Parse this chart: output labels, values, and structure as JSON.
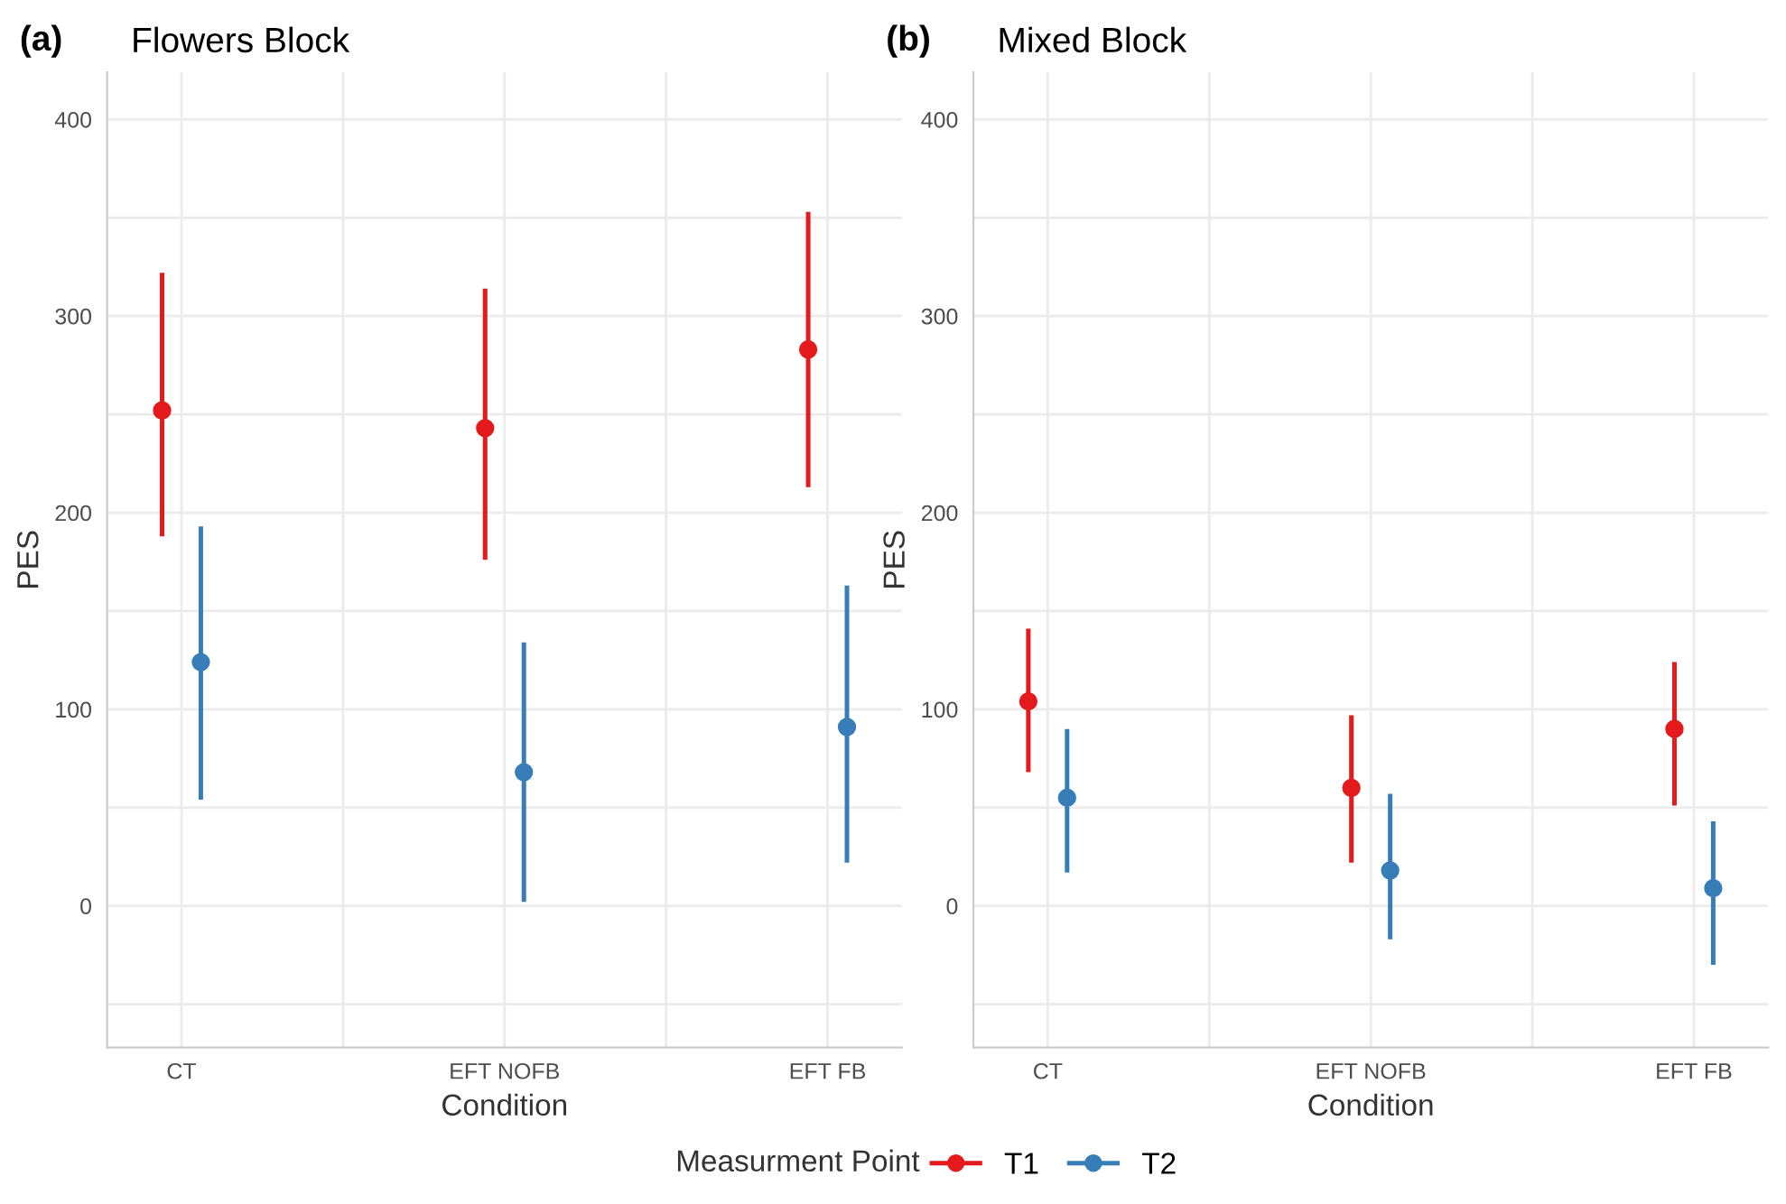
{
  "chart_data": [
    {
      "type": "scatter",
      "title": "Flowers Block",
      "annotations": [
        "(a)"
      ],
      "xlabel": "Condition",
      "ylabel": "PES",
      "legend_title": "Measurment Point",
      "legend": "bottom",
      "grid": true,
      "marker": "circle",
      "categories": [
        "CT",
        "EFT NOFB",
        "EFT FB"
      ],
      "ylim": [
        -72,
        424
      ],
      "yticks": [
        {
          "value": -50,
          "label": null
        },
        0,
        {
          "value": 50,
          "label": null
        },
        100,
        {
          "value": 150,
          "label": null
        },
        200,
        {
          "value": 250,
          "label": null
        },
        300,
        {
          "value": 350,
          "label": null
        },
        400
      ],
      "series": [
        {
          "name": "T1",
          "color": "#e41a1c",
          "values": [
            252,
            243,
            283
          ],
          "errors": [
            [
              188,
              322
            ],
            [
              176,
              314
            ],
            [
              213,
              353
            ]
          ]
        },
        {
          "name": "T2",
          "color": "#377eb8",
          "values": [
            124,
            68,
            91
          ],
          "errors": [
            [
              54,
              193
            ],
            [
              2,
              134
            ],
            [
              22,
              163
            ]
          ]
        }
      ]
    },
    {
      "type": "scatter",
      "title": "Mixed Block",
      "annotations": [
        "(b)"
      ],
      "xlabel": "Condition",
      "ylabel": "PES",
      "grid": true,
      "marker": "circle",
      "categories": [
        "CT",
        "EFT NOFB",
        "EFT FB"
      ],
      "ylim": [
        -72,
        424
      ],
      "yticks": [
        {
          "value": -50,
          "label": null
        },
        0,
        {
          "value": 50,
          "label": null
        },
        100,
        {
          "value": 150,
          "label": null
        },
        200,
        {
          "value": 250,
          "label": null
        },
        300,
        {
          "value": 350,
          "label": null
        },
        400
      ],
      "series": [
        {
          "color": "#e41a1c",
          "values": [
            104,
            60,
            90
          ],
          "errors": [
            [
              68,
              141
            ],
            [
              22,
              97
            ],
            [
              51,
              124
            ]
          ]
        },
        {
          "color": "#377eb8",
          "values": [
            55,
            18,
            9
          ],
          "errors": [
            [
              17,
              90
            ],
            [
              -17,
              57
            ],
            [
              -30,
              43
            ]
          ]
        }
      ]
    }
  ]
}
